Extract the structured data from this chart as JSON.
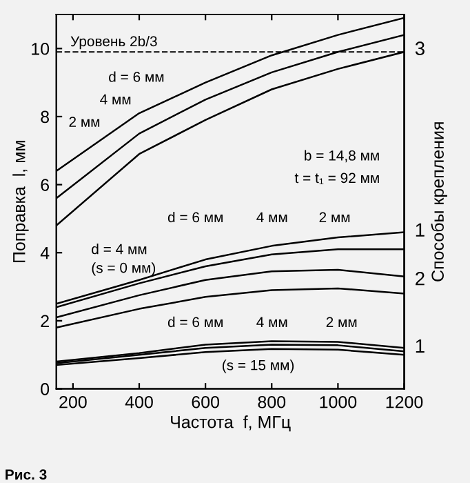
{
  "chart_data": {
    "type": "line",
    "xlabel": "Частота  f, МГц",
    "ylabel": "Поправка  l, мм",
    "y2label": "Способы крепления",
    "x": [
      150,
      400,
      600,
      800,
      1000,
      1200
    ],
    "xlim": [
      150,
      1200
    ],
    "ylim": [
      0,
      11
    ],
    "xticks": [
      200,
      400,
      600,
      800,
      1000,
      1200
    ],
    "yticks": [
      0,
      2,
      4,
      6,
      8,
      10
    ],
    "grid": false,
    "marker": "none",
    "line_style": "solid",
    "series": [
      {
        "color": "#000000",
        "values": [
          6.4,
          8.1,
          9.0,
          9.8,
          10.4,
          10.9
        ]
      },
      {
        "color": "#000000",
        "values": [
          5.6,
          7.5,
          8.5,
          9.3,
          9.9,
          10.4
        ]
      },
      {
        "color": "#000000",
        "values": [
          4.8,
          6.9,
          7.9,
          8.8,
          9.4,
          9.9
        ]
      },
      {
        "color": "#000000",
        "values": [
          2.5,
          3.2,
          3.8,
          4.2,
          4.45,
          4.6
        ]
      },
      {
        "color": "#000000",
        "values": [
          2.4,
          3.1,
          3.6,
          3.95,
          4.1,
          4.1
        ]
      },
      {
        "color": "#000000",
        "values": [
          2.1,
          2.75,
          3.2,
          3.45,
          3.5,
          3.3
        ]
      },
      {
        "color": "#000000",
        "values": [
          1.8,
          2.35,
          2.7,
          2.9,
          2.95,
          2.8
        ]
      },
      {
        "color": "#000000",
        "values": [
          0.8,
          1.05,
          1.3,
          1.4,
          1.38,
          1.2
        ]
      },
      {
        "color": "#000000",
        "values": [
          0.75,
          1.0,
          1.2,
          1.3,
          1.28,
          1.1
        ]
      },
      {
        "color": "#000000",
        "values": [
          0.7,
          0.9,
          1.08,
          1.17,
          1.15,
          1.0
        ]
      }
    ],
    "ref_lines": [
      {
        "axis": "y",
        "value": 9.9,
        "label": "Уровень 2b/3",
        "color": "#000000",
        "line_style": "dashed"
      }
    ],
    "annotations": [
      "d = 6 мм",
      "4 мм",
      "2 мм",
      "b = 14,8 мм",
      "t = t₁ = 92 мм",
      "d = 6 мм",
      "4 мм",
      "2 мм",
      "d = 4 мм",
      "(s = 0 мм)",
      "d = 6 мм",
      "4 мм",
      "2 мм",
      "(s = 15 мм)",
      "3",
      "1",
      "2",
      "1",
      "Рис. 3"
    ]
  }
}
